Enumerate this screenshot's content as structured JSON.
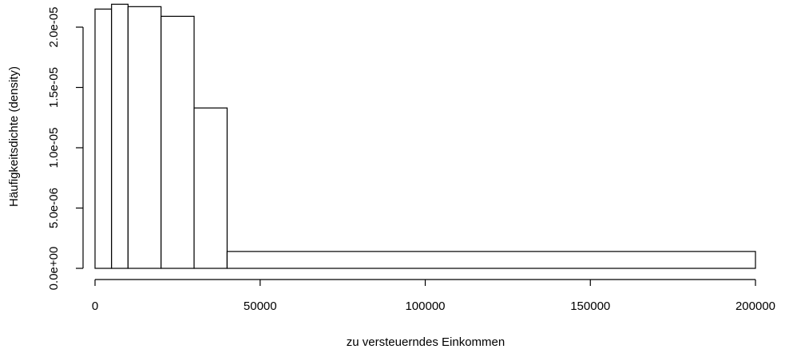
{
  "chart_data": {
    "type": "histogram",
    "xlabel": "zu versteuerndes Einkommen",
    "ylabel": "Häufigkeitsdichte (density)",
    "xlim": [
      0,
      200000
    ],
    "ylim": [
      0,
      2.2e-05
    ],
    "grid": false,
    "bins": [
      {
        "from": 0,
        "to": 5000,
        "density": 2.15e-05
      },
      {
        "from": 5000,
        "to": 10000,
        "density": 2.19e-05
      },
      {
        "from": 10000,
        "to": 20000,
        "density": 2.17e-05
      },
      {
        "from": 20000,
        "to": 30000,
        "density": 2.09e-05
      },
      {
        "from": 30000,
        "to": 40000,
        "density": 1.33e-05
      },
      {
        "from": 40000,
        "to": 200000,
        "density": 1.4e-06
      }
    ],
    "x_ticks": [
      {
        "value": 0,
        "label": "0"
      },
      {
        "value": 50000,
        "label": "50000"
      },
      {
        "value": 100000,
        "label": "100000"
      },
      {
        "value": 150000,
        "label": "150000"
      },
      {
        "value": 200000,
        "label": "200000"
      }
    ],
    "y_ticks": [
      {
        "value": 0,
        "label": "0.0e+00"
      },
      {
        "value": 5e-06,
        "label": "5.0e-06"
      },
      {
        "value": 1e-05,
        "label": "1.0e-05"
      },
      {
        "value": 1.5e-05,
        "label": "1.5e-05"
      },
      {
        "value": 2e-05,
        "label": "2.0e-05"
      }
    ]
  }
}
